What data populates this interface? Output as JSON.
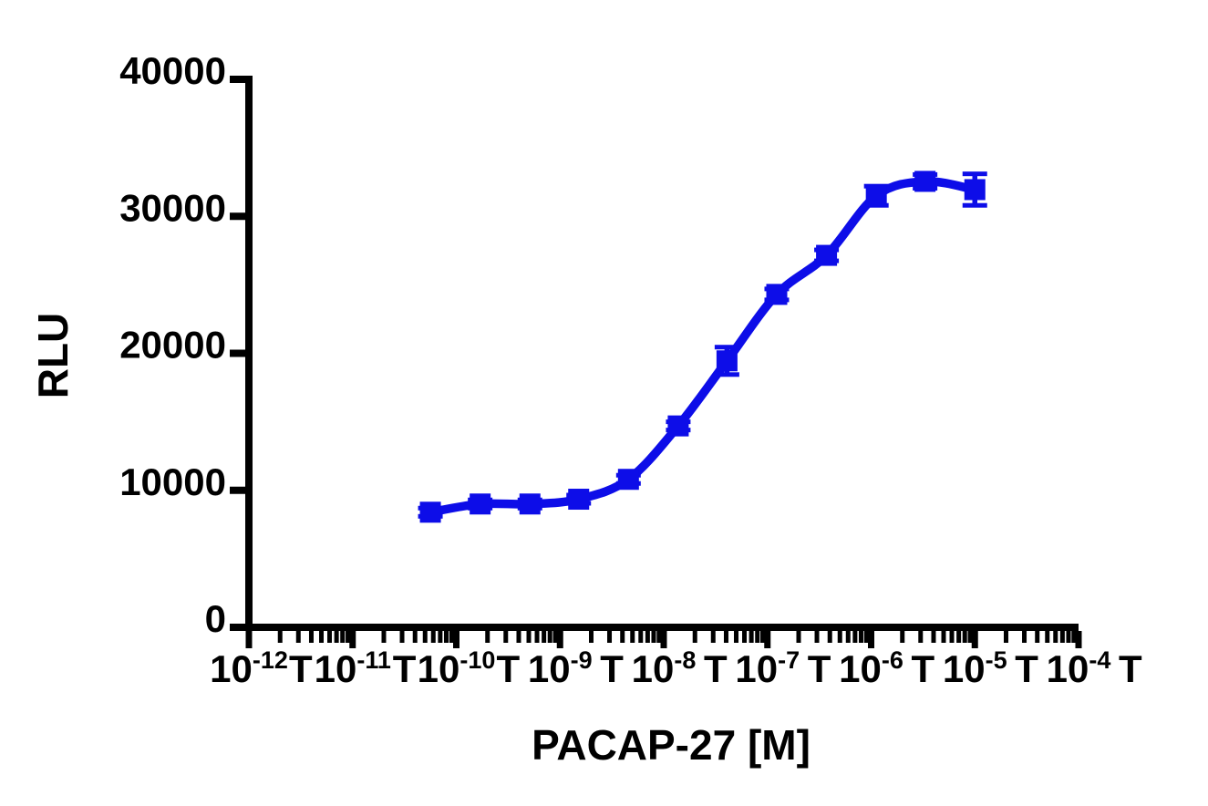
{
  "figure": {
    "background": "#ffffff",
    "axis_color": "#000000",
    "accent_blue": "#0d0de8"
  },
  "chart_data": {
    "type": "scatter",
    "subtype": "dose-response-sigmoid-fit",
    "title": "",
    "xlabel": "PACAP-27 [M]",
    "ylabel": "RLU",
    "x_scale": "log10",
    "xlim_log10": [
      -12,
      -4
    ],
    "ylim": [
      0,
      40000
    ],
    "grid": false,
    "legend": "none",
    "x_axis": {
      "decade_tick_base": "10",
      "decade_exponents": [
        "-12",
        "-11",
        "-10",
        "-9",
        "-8",
        "-7",
        "-6",
        "-5",
        "-4"
      ],
      "decade_log10": [
        -12,
        -11,
        -10,
        -9,
        -8,
        -7,
        -6,
        -5,
        -4
      ],
      "half_decade_label": "T",
      "half_decade_log10": [
        -11.5,
        -10.5,
        -9.5,
        -8.5,
        -7.5,
        -6.5,
        -5.5,
        -4.5,
        -3.5
      ],
      "minor_ticks": "log multiples 2-9 per decade"
    },
    "y_axis": {
      "tick_values": [
        0,
        10000,
        20000,
        30000,
        40000
      ],
      "tick_labels": [
        "0",
        "10000",
        "20000",
        "30000",
        "40000"
      ]
    },
    "series": [
      {
        "name": "PACAP-27",
        "color": "#0d0de8",
        "marker": "square",
        "marker_size_px": 23,
        "line": "smooth sigmoid fit through points",
        "points": [
          {
            "conc_M": "5.6e-11",
            "logx": -10.25,
            "rlu": 8400,
            "err": 300
          },
          {
            "conc_M": "1.7e-10",
            "logx": -9.77,
            "rlu": 9000,
            "err": 300
          },
          {
            "conc_M": "5.1e-10",
            "logx": -9.29,
            "rlu": 9000,
            "err": 300
          },
          {
            "conc_M": "1.5e-9",
            "logx": -8.82,
            "rlu": 9350,
            "err": 300
          },
          {
            "conc_M": "4.6e-9",
            "logx": -8.34,
            "rlu": 10800,
            "err": 300
          },
          {
            "conc_M": "1.4e-8",
            "logx": -7.86,
            "rlu": 14700,
            "err": 300
          },
          {
            "conc_M": "4.1e-8",
            "logx": -7.39,
            "rlu": 19450,
            "err": 1000
          },
          {
            "conc_M": "1.2e-7",
            "logx": -6.91,
            "rlu": 24300,
            "err": 400
          },
          {
            "conc_M": "3.7e-7",
            "logx": -6.43,
            "rlu": 27150,
            "err": 400
          },
          {
            "conc_M": "1.1e-6",
            "logx": -5.95,
            "rlu": 31500,
            "err": 700
          },
          {
            "conc_M": "3.3e-6",
            "logx": -5.48,
            "rlu": 32550,
            "err": 500
          },
          {
            "conc_M": "1.0e-5",
            "logx": -5.0,
            "rlu": 31950,
            "err": 1150
          }
        ]
      }
    ]
  }
}
